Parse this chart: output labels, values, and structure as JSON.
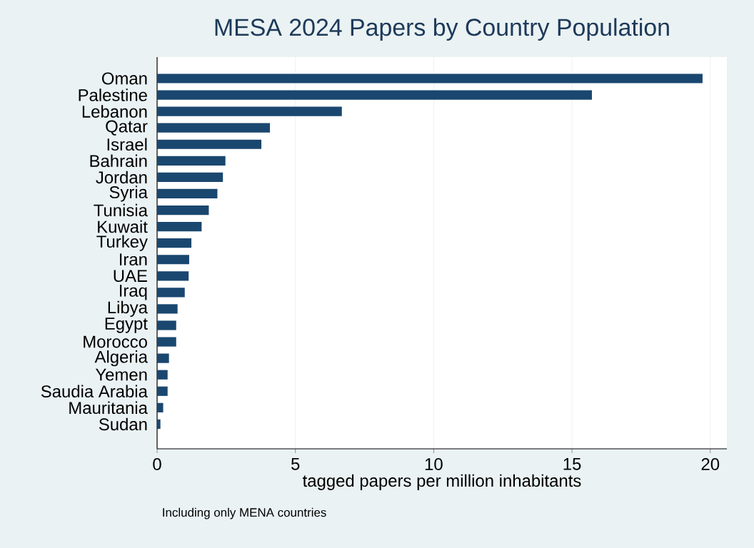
{
  "chart_data": {
    "type": "bar",
    "orientation": "horizontal",
    "title": "MESA 2024 Papers by Country Population",
    "xlabel": "tagged papers per million inhabitants",
    "annotations": [
      "Including only MENA countries"
    ],
    "categories": [
      "Oman",
      "Palestine",
      "Lebanon",
      "Qatar",
      "Israel",
      "Bahrain",
      "Jordan",
      "Syria",
      "Tunisia",
      "Kuwait",
      "Turkey",
      "Iran",
      "UAE",
      "Iraq",
      "Libya",
      "Egypt",
      "Morocco",
      "Algeria",
      "Yemen",
      "Saudia Arabia",
      "Mauritania",
      "Sudan"
    ],
    "values": [
      19.72,
      15.72,
      6.68,
      4.08,
      3.77,
      2.47,
      2.38,
      2.18,
      1.87,
      1.61,
      1.24,
      1.16,
      1.14,
      1.0,
      0.74,
      0.69,
      0.69,
      0.43,
      0.38,
      0.38,
      0.22,
      0.12
    ],
    "color": "#1a476f",
    "xlim": [
      0,
      20.6
    ],
    "xticks": [
      0,
      5,
      10,
      15,
      20
    ],
    "grid": "x"
  }
}
